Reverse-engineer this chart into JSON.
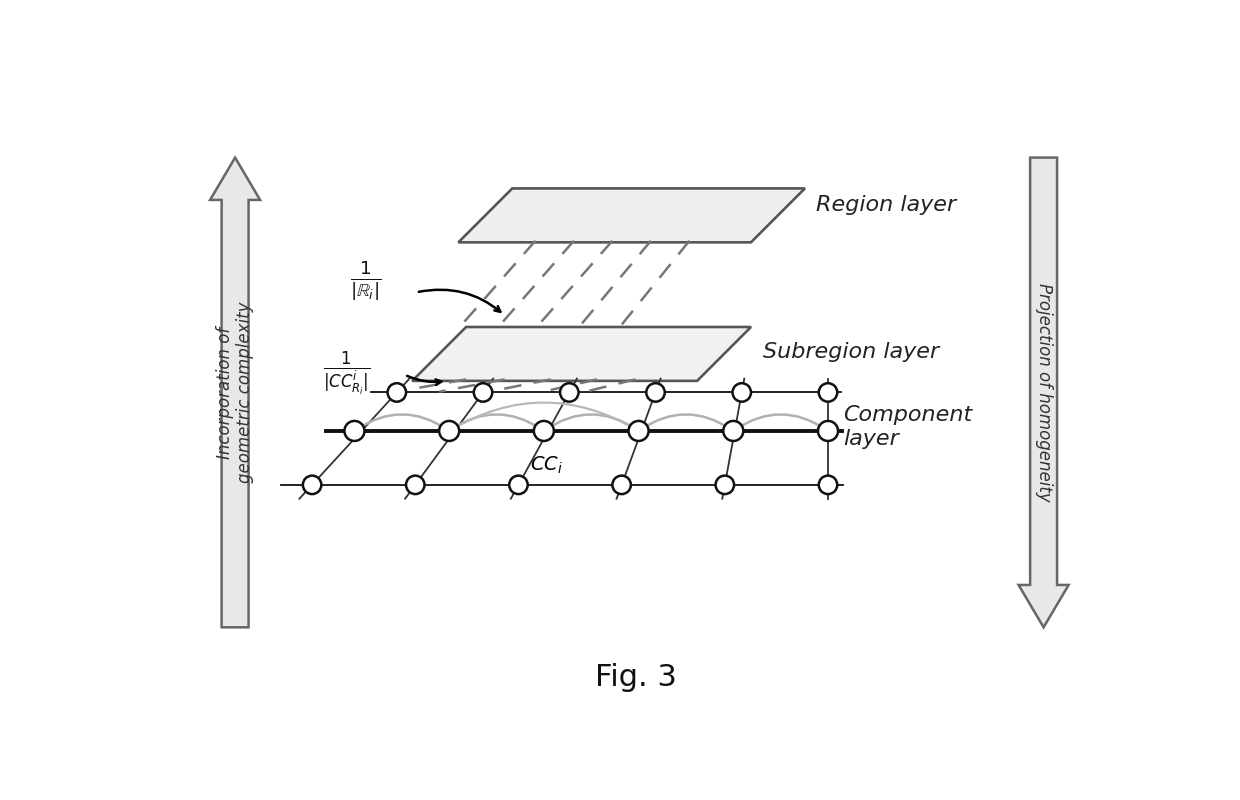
{
  "title": "Fig. 3",
  "region_layer_label": "Region layer",
  "subregion_layer_label": "Subregion layer",
  "component_layer_label": "Component\nlayer",
  "left_arrow_label": "Incorporation of\ngeometric complexity",
  "right_arrow_label": "Projection of homogeneity",
  "cc_label": "$CC_i$",
  "bg_color": "#ffffff",
  "line_color": "#333333",
  "node_color": "#ffffff",
  "node_edge_color": "#111111",
  "plane_fill": "#d8d8d8",
  "plane_edge": "#555555",
  "dashed_color": "#888888",
  "curve_color": "#aaaaaa",
  "arrow_fill": "#e8e8e8",
  "arrow_edge": "#666666"
}
